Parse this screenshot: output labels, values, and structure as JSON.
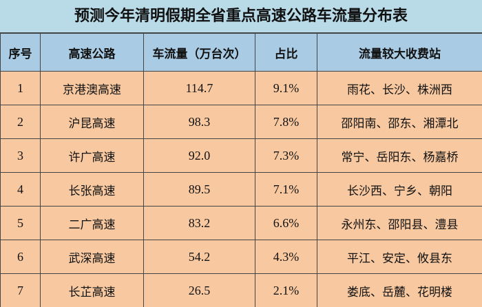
{
  "header": {
    "title": "预测今年清明假期全省重点高速公路车流量分布表"
  },
  "table": {
    "columns": [
      "序号",
      "高速公路",
      "车流量（万台次）",
      "占比",
      "流量较大收费站"
    ],
    "rows": [
      [
        "1",
        "京港澳高速",
        "114.7",
        "9.1%",
        "雨花、长沙、株洲西"
      ],
      [
        "2",
        "沪昆高速",
        "98.3",
        "7.8%",
        "邵阳南、邵东、湘潭北"
      ],
      [
        "3",
        "许广高速",
        "92.0",
        "7.3%",
        "常宁、岳阳东、杨嘉桥"
      ],
      [
        "4",
        "长张高速",
        "89.5",
        "7.1%",
        "长沙西、宁乡、朝阳"
      ],
      [
        "5",
        "二广高速",
        "83.2",
        "6.6%",
        "永州东、邵阳县、澧县"
      ],
      [
        "6",
        "武深高速",
        "54.2",
        "4.3%",
        "平江、安定、攸县东"
      ],
      [
        "7",
        "长芷高速",
        "26.5",
        "2.1%",
        "娄底、岳麓、花明楼"
      ]
    ]
  }
}
